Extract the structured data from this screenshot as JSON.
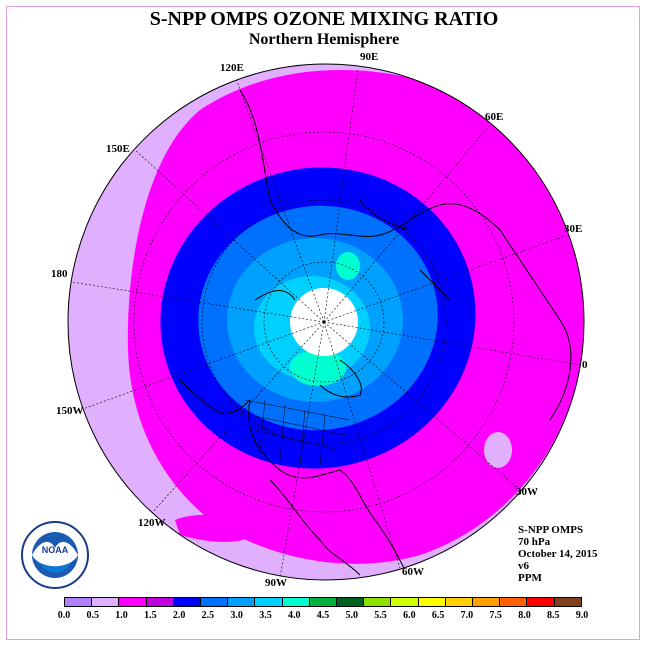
{
  "title": "S-NPP OMPS OZONE MIXING RATIO",
  "subtitle": "Northern Hemisphere",
  "longitude_labels": [
    "90E",
    "60E",
    "30E",
    "0",
    "30W",
    "60W",
    "90W",
    "120W",
    "150W",
    "180",
    "150E",
    "120E"
  ],
  "info": {
    "line1": "S-NPP OMPS",
    "line2": "70 hPa",
    "line3": "October 14, 2015",
    "line4": "v6",
    "line5": "PPM"
  },
  "colorbar": {
    "colors": [
      "#b080ff",
      "#e0b0ff",
      "#ff00ff",
      "#c000e0",
      "#0000ff",
      "#0070ff",
      "#00a0ff",
      "#00d0ff",
      "#00ffd0",
      "#00b040",
      "#006020",
      "#90e000",
      "#d0ff00",
      "#ffff00",
      "#ffd000",
      "#ffa000",
      "#ff6000",
      "#ff0000",
      "#804020"
    ],
    "ticks": [
      "0.0",
      "0.5",
      "1.0",
      "1.5",
      "2.0",
      "2.5",
      "3.0",
      "3.5",
      "4.0",
      "4.5",
      "5.0",
      "5.5",
      "6.0",
      "6.5",
      "7.0",
      "7.5",
      "8.0",
      "8.5",
      "9.0"
    ]
  },
  "logo_text": "NOAA"
}
